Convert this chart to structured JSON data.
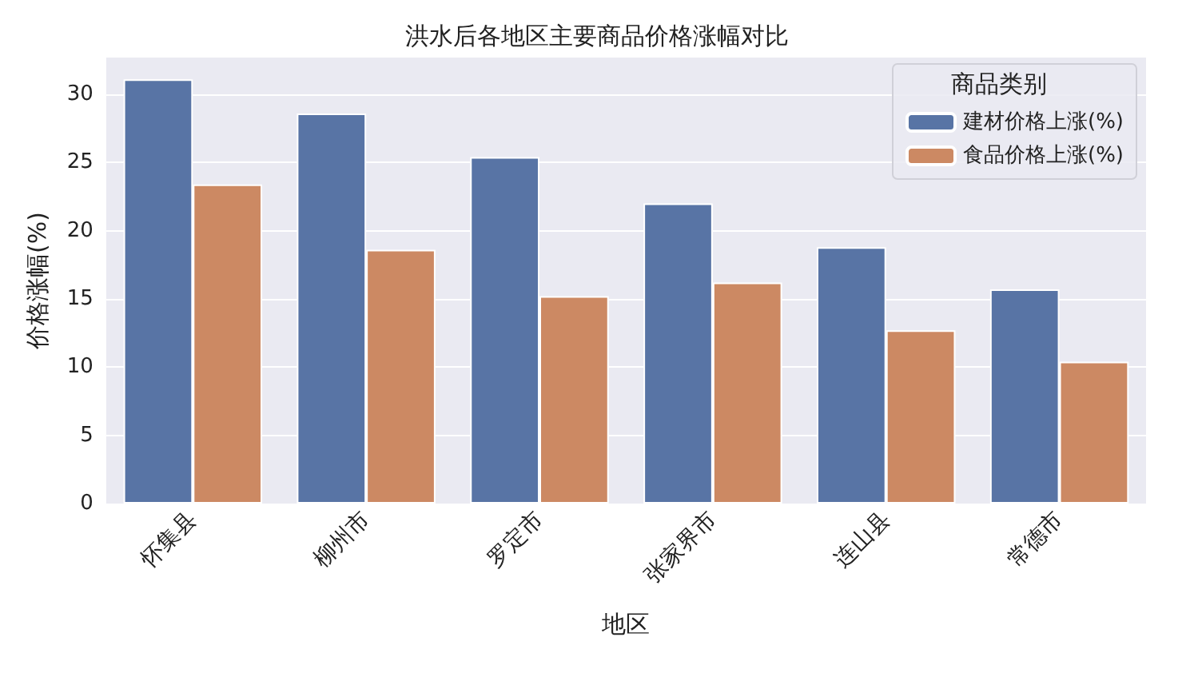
{
  "chart_data": {
    "type": "bar",
    "title": "洪水后各地区主要商品价格涨幅对比",
    "xlabel": "地区",
    "ylabel": "价格涨幅(%)",
    "legend_title": "商品类别",
    "categories": [
      "怀集县",
      "柳州市",
      "罗定市",
      "张家界市",
      "连山县",
      "常德市"
    ],
    "series": [
      {
        "name": "建材价格上涨(%)",
        "color": "#5874a5",
        "values": [
          31.1,
          28.6,
          25.4,
          22.0,
          18.8,
          15.7
        ]
      },
      {
        "name": "食品价格上涨(%)",
        "color": "#cc8963",
        "values": [
          23.4,
          18.6,
          15.2,
          16.2,
          12.7,
          10.4
        ]
      }
    ],
    "ylim": [
      0,
      32.7
    ],
    "yticks": [
      0,
      5,
      10,
      15,
      20,
      25,
      30
    ],
    "grid": "y",
    "legend": "top right"
  }
}
